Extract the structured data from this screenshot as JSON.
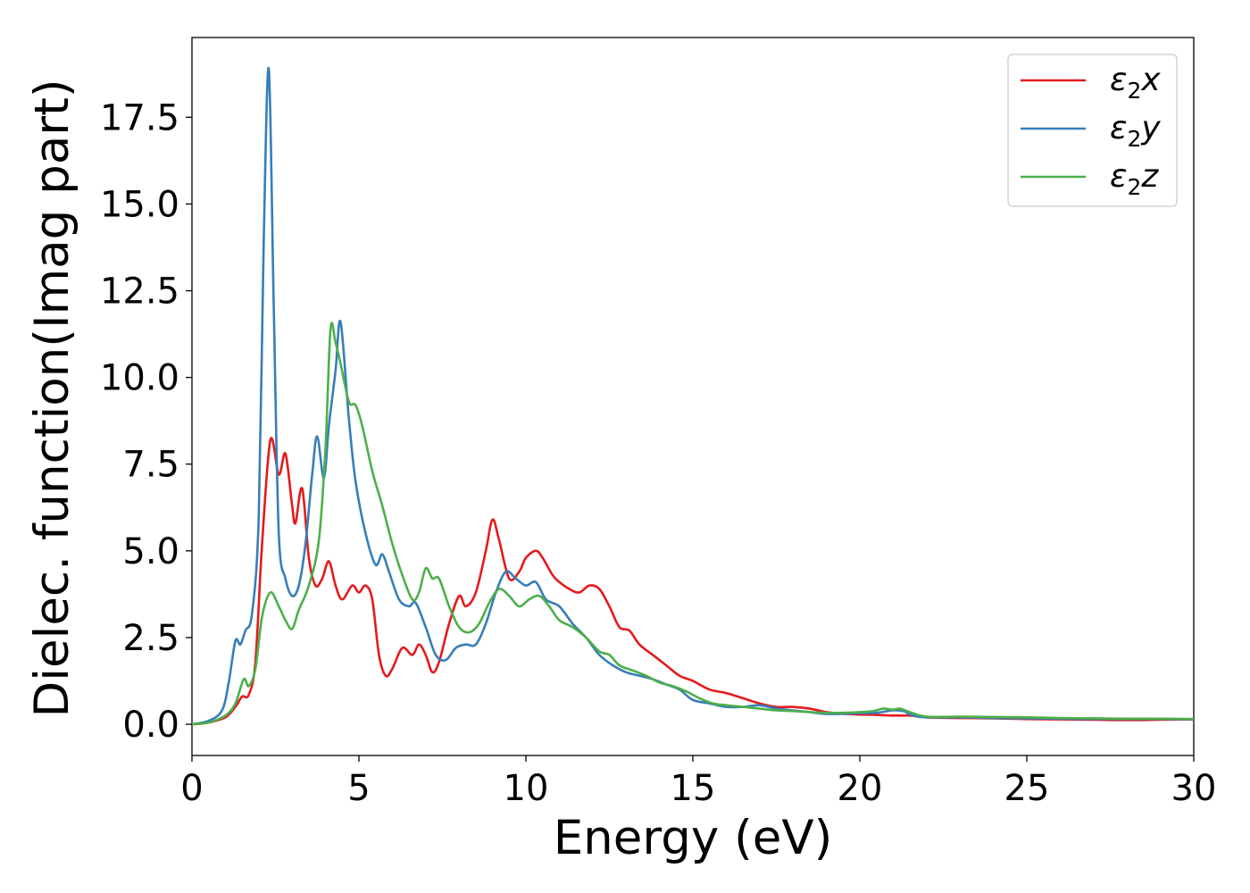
{
  "chart_data": {
    "type": "line",
    "title": "",
    "xlabel": "Energy (eV)",
    "ylabel": "Dielec. function(Imag part)",
    "xlim": [
      0,
      30
    ],
    "ylim": [
      -0.9,
      19.8
    ],
    "xticks": [
      0,
      5,
      10,
      15,
      20,
      25,
      30
    ],
    "yticks": [
      0.0,
      2.5,
      5.0,
      7.5,
      10.0,
      12.5,
      15.0,
      17.5
    ],
    "xtick_labels": [
      "0",
      "5",
      "10",
      "15",
      "20",
      "25",
      "30"
    ],
    "ytick_labels": [
      "0.0",
      "2.5",
      "5.0",
      "7.5",
      "10.0",
      "12.5",
      "15.0",
      "17.5"
    ],
    "grid": false,
    "legend_position": "top-right",
    "series": [
      {
        "name": "ε2x",
        "legend_base": "ε",
        "legend_sub": "2",
        "legend_var": "x",
        "color": "#e41a1c",
        "points": [
          [
            0,
            0
          ],
          [
            0.5,
            0.05
          ],
          [
            1.0,
            0.2
          ],
          [
            1.3,
            0.5
          ],
          [
            1.5,
            0.8
          ],
          [
            1.7,
            0.85
          ],
          [
            1.9,
            1.8
          ],
          [
            2.1,
            5.2
          ],
          [
            2.35,
            8.2
          ],
          [
            2.6,
            7.2
          ],
          [
            2.8,
            7.8
          ],
          [
            3.0,
            6.3
          ],
          [
            3.1,
            5.8
          ],
          [
            3.3,
            6.8
          ],
          [
            3.5,
            4.8
          ],
          [
            3.7,
            4.0
          ],
          [
            3.9,
            4.2
          ],
          [
            4.1,
            4.7
          ],
          [
            4.3,
            4.0
          ],
          [
            4.5,
            3.6
          ],
          [
            4.8,
            4.0
          ],
          [
            5.0,
            3.8
          ],
          [
            5.2,
            4.0
          ],
          [
            5.4,
            3.6
          ],
          [
            5.6,
            2.0
          ],
          [
            5.8,
            1.4
          ],
          [
            6.0,
            1.6
          ],
          [
            6.3,
            2.2
          ],
          [
            6.6,
            2.0
          ],
          [
            6.8,
            2.3
          ],
          [
            7.0,
            2.0
          ],
          [
            7.2,
            1.5
          ],
          [
            7.4,
            1.8
          ],
          [
            7.7,
            2.9
          ],
          [
            8.0,
            3.7
          ],
          [
            8.2,
            3.4
          ],
          [
            8.5,
            3.8
          ],
          [
            8.8,
            5.0
          ],
          [
            9.0,
            5.9
          ],
          [
            9.2,
            5.3
          ],
          [
            9.5,
            4.2
          ],
          [
            9.8,
            4.4
          ],
          [
            10.0,
            4.8
          ],
          [
            10.3,
            5.0
          ],
          [
            10.5,
            4.8
          ],
          [
            10.8,
            4.3
          ],
          [
            11.0,
            4.1
          ],
          [
            11.3,
            3.9
          ],
          [
            11.6,
            3.8
          ],
          [
            11.9,
            4.0
          ],
          [
            12.2,
            3.9
          ],
          [
            12.5,
            3.4
          ],
          [
            12.8,
            2.8
          ],
          [
            13.1,
            2.7
          ],
          [
            13.4,
            2.3
          ],
          [
            13.8,
            2.0
          ],
          [
            14.2,
            1.7
          ],
          [
            14.6,
            1.4
          ],
          [
            15.0,
            1.25
          ],
          [
            15.5,
            1.0
          ],
          [
            16.0,
            0.9
          ],
          [
            16.5,
            0.75
          ],
          [
            17.0,
            0.6
          ],
          [
            17.5,
            0.5
          ],
          [
            18.0,
            0.5
          ],
          [
            18.5,
            0.45
          ],
          [
            19.0,
            0.35
          ],
          [
            19.5,
            0.3
          ],
          [
            20.0,
            0.28
          ],
          [
            20.5,
            0.27
          ],
          [
            21.0,
            0.25
          ],
          [
            21.5,
            0.25
          ],
          [
            22.0,
            0.2
          ],
          [
            23.0,
            0.18
          ],
          [
            24.0,
            0.17
          ],
          [
            25.0,
            0.15
          ],
          [
            26.0,
            0.14
          ],
          [
            27.0,
            0.13
          ],
          [
            28.0,
            0.12
          ],
          [
            29.0,
            0.13
          ],
          [
            30.0,
            0.14
          ]
        ]
      },
      {
        "name": "ε2y",
        "legend_base": "ε",
        "legend_sub": "2",
        "legend_var": "y",
        "color": "#377eb8",
        "points": [
          [
            0,
            0
          ],
          [
            0.5,
            0.1
          ],
          [
            0.9,
            0.4
          ],
          [
            1.1,
            1.2
          ],
          [
            1.3,
            2.4
          ],
          [
            1.45,
            2.3
          ],
          [
            1.6,
            2.7
          ],
          [
            1.8,
            3.2
          ],
          [
            2.0,
            6.0
          ],
          [
            2.15,
            14.0
          ],
          [
            2.3,
            18.9
          ],
          [
            2.45,
            12.0
          ],
          [
            2.6,
            5.5
          ],
          [
            2.8,
            4.2
          ],
          [
            3.0,
            3.7
          ],
          [
            3.2,
            4.0
          ],
          [
            3.4,
            5.2
          ],
          [
            3.6,
            7.2
          ],
          [
            3.75,
            8.3
          ],
          [
            3.95,
            7.1
          ],
          [
            4.1,
            8.6
          ],
          [
            4.3,
            10.2
          ],
          [
            4.45,
            11.6
          ],
          [
            4.7,
            8.8
          ],
          [
            4.9,
            7.0
          ],
          [
            5.2,
            5.5
          ],
          [
            5.5,
            4.6
          ],
          [
            5.7,
            4.9
          ],
          [
            5.9,
            4.4
          ],
          [
            6.2,
            3.6
          ],
          [
            6.5,
            3.4
          ],
          [
            6.7,
            3.5
          ],
          [
            7.0,
            2.8
          ],
          [
            7.3,
            2.0
          ],
          [
            7.6,
            1.85
          ],
          [
            7.9,
            2.2
          ],
          [
            8.2,
            2.3
          ],
          [
            8.5,
            2.3
          ],
          [
            8.8,
            2.9
          ],
          [
            9.1,
            3.8
          ],
          [
            9.4,
            4.4
          ],
          [
            9.7,
            4.2
          ],
          [
            10.0,
            4.0
          ],
          [
            10.3,
            4.1
          ],
          [
            10.6,
            3.6
          ],
          [
            11.0,
            3.4
          ],
          [
            11.4,
            2.9
          ],
          [
            11.8,
            2.5
          ],
          [
            12.2,
            2.0
          ],
          [
            12.6,
            1.7
          ],
          [
            13.0,
            1.5
          ],
          [
            13.4,
            1.4
          ],
          [
            13.8,
            1.3
          ],
          [
            14.2,
            1.15
          ],
          [
            14.6,
            1.0
          ],
          [
            15.0,
            0.7
          ],
          [
            15.5,
            0.6
          ],
          [
            16.0,
            0.5
          ],
          [
            16.5,
            0.5
          ],
          [
            17.0,
            0.55
          ],
          [
            17.5,
            0.45
          ],
          [
            18.0,
            0.4
          ],
          [
            18.5,
            0.35
          ],
          [
            19.0,
            0.3
          ],
          [
            19.5,
            0.3
          ],
          [
            20.0,
            0.32
          ],
          [
            20.5,
            0.33
          ],
          [
            21.0,
            0.4
          ],
          [
            21.3,
            0.38
          ],
          [
            21.6,
            0.25
          ],
          [
            22.0,
            0.2
          ],
          [
            23.0,
            0.2
          ],
          [
            24.0,
            0.18
          ],
          [
            25.0,
            0.17
          ],
          [
            26.0,
            0.16
          ],
          [
            27.0,
            0.15
          ],
          [
            28.0,
            0.15
          ],
          [
            29.0,
            0.15
          ],
          [
            30.0,
            0.14
          ]
        ]
      },
      {
        "name": "ε2z",
        "legend_base": "ε",
        "legend_sub": "2",
        "legend_var": "z",
        "color": "#4daf4a",
        "points": [
          [
            0,
            0
          ],
          [
            0.5,
            0.05
          ],
          [
            1.0,
            0.25
          ],
          [
            1.3,
            0.6
          ],
          [
            1.55,
            1.3
          ],
          [
            1.7,
            1.1
          ],
          [
            1.9,
            1.6
          ],
          [
            2.1,
            3.1
          ],
          [
            2.35,
            3.8
          ],
          [
            2.6,
            3.4
          ],
          [
            2.8,
            3.0
          ],
          [
            3.0,
            2.75
          ],
          [
            3.2,
            3.3
          ],
          [
            3.5,
            4.0
          ],
          [
            3.8,
            5.3
          ],
          [
            4.0,
            8.0
          ],
          [
            4.15,
            11.4
          ],
          [
            4.3,
            11.0
          ],
          [
            4.45,
            10.4
          ],
          [
            4.7,
            9.3
          ],
          [
            4.9,
            9.2
          ],
          [
            5.1,
            8.6
          ],
          [
            5.4,
            7.3
          ],
          [
            5.7,
            6.3
          ],
          [
            6.0,
            5.2
          ],
          [
            6.3,
            4.3
          ],
          [
            6.6,
            3.6
          ],
          [
            6.8,
            3.8
          ],
          [
            7.0,
            4.5
          ],
          [
            7.2,
            4.2
          ],
          [
            7.4,
            4.2
          ],
          [
            7.7,
            3.4
          ],
          [
            8.0,
            2.8
          ],
          [
            8.3,
            2.65
          ],
          [
            8.6,
            2.9
          ],
          [
            8.9,
            3.5
          ],
          [
            9.2,
            3.9
          ],
          [
            9.5,
            3.7
          ],
          [
            9.8,
            3.4
          ],
          [
            10.1,
            3.6
          ],
          [
            10.4,
            3.7
          ],
          [
            10.7,
            3.4
          ],
          [
            11.0,
            3.0
          ],
          [
            11.4,
            2.8
          ],
          [
            11.8,
            2.5
          ],
          [
            12.2,
            2.1
          ],
          [
            12.5,
            2.0
          ],
          [
            12.8,
            1.7
          ],
          [
            13.2,
            1.55
          ],
          [
            13.6,
            1.4
          ],
          [
            14.0,
            1.2
          ],
          [
            14.4,
            1.1
          ],
          [
            14.8,
            0.95
          ],
          [
            15.2,
            0.75
          ],
          [
            15.6,
            0.6
          ],
          [
            16.0,
            0.55
          ],
          [
            16.5,
            0.5
          ],
          [
            17.0,
            0.45
          ],
          [
            17.5,
            0.4
          ],
          [
            18.0,
            0.38
          ],
          [
            18.5,
            0.35
          ],
          [
            19.0,
            0.33
          ],
          [
            19.5,
            0.33
          ],
          [
            20.0,
            0.35
          ],
          [
            20.4,
            0.38
          ],
          [
            20.7,
            0.45
          ],
          [
            21.0,
            0.42
          ],
          [
            21.2,
            0.45
          ],
          [
            21.5,
            0.35
          ],
          [
            22.0,
            0.22
          ],
          [
            23.0,
            0.22
          ],
          [
            24.0,
            0.21
          ],
          [
            25.0,
            0.2
          ],
          [
            26.0,
            0.18
          ],
          [
            27.0,
            0.17
          ],
          [
            28.0,
            0.16
          ],
          [
            29.0,
            0.16
          ],
          [
            30.0,
            0.15
          ]
        ]
      }
    ]
  }
}
